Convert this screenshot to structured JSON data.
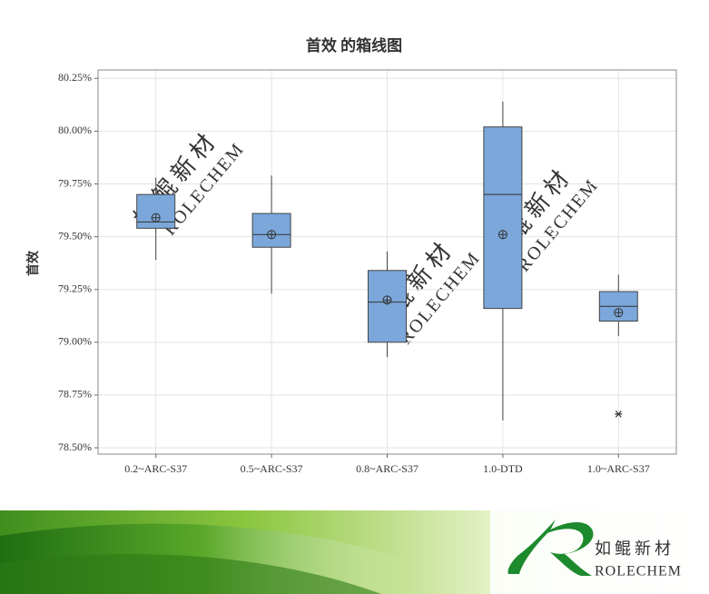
{
  "chart_data": {
    "type": "box",
    "title": "首效 的箱线图",
    "y_label": "首效",
    "categories": [
      "0.2~ARC-S37",
      "0.5~ARC-S37",
      "0.8~ARC-S37",
      "1.0-DTD",
      "1.0~ARC-S37"
    ],
    "boxes": [
      {
        "whisker_low": 79.39,
        "q1": 79.54,
        "median": 79.57,
        "q3": 79.7,
        "whisker_high": 79.78,
        "mean": 79.59,
        "outliers": []
      },
      {
        "whisker_low": 79.23,
        "q1": 79.45,
        "median": 79.51,
        "q3": 79.61,
        "whisker_high": 79.79,
        "mean": 79.51,
        "outliers": []
      },
      {
        "whisker_low": 78.93,
        "q1": 79.0,
        "median": 79.19,
        "q3": 79.34,
        "whisker_high": 79.43,
        "mean": 79.2,
        "outliers": []
      },
      {
        "whisker_low": 78.63,
        "q1": 79.16,
        "median": 79.7,
        "q3": 80.02,
        "whisker_high": 80.14,
        "mean": 79.51,
        "outliers": []
      },
      {
        "whisker_low": 79.03,
        "q1": 79.1,
        "median": 79.17,
        "q3": 79.24,
        "whisker_high": 79.32,
        "mean": 79.14,
        "outliers": [
          78.66
        ]
      }
    ],
    "color": "#7ba7db",
    "ylim": [
      78.47,
      80.29
    ],
    "yticks": [
      {
        "value": 78.5,
        "label": "78.50%"
      },
      {
        "value": 78.75,
        "label": "78.75%"
      },
      {
        "value": 79.0,
        "label": "79.00%"
      },
      {
        "value": 79.25,
        "label": "79.25%"
      },
      {
        "value": 79.5,
        "label": "79.50%"
      },
      {
        "value": 79.75,
        "label": "79.75%"
      },
      {
        "value": 80.0,
        "label": "80.00%"
      },
      {
        "value": 80.25,
        "label": "80.25%"
      }
    ],
    "grid": true
  },
  "footer": {
    "name_cn": "如鲲新材",
    "name_en": "ROLECHEM"
  }
}
